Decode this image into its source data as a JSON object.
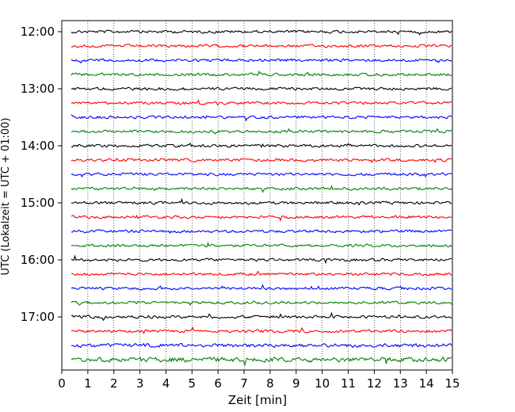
{
  "chart_data": {
    "type": "line",
    "title": "",
    "xlabel": "Zeit  [min]",
    "ylabel": "UTC (Lokalzeit = UTC + 01:00)",
    "xlim": [
      0,
      15
    ],
    "x_ticks": [
      "0",
      "1",
      "2",
      "3",
      "4",
      "5",
      "6",
      "7",
      "8",
      "9",
      "10",
      "11",
      "12",
      "13",
      "14",
      "15"
    ],
    "y_ticks": [
      "12:00",
      "13:00",
      "14:00",
      "15:00",
      "16:00",
      "17:00"
    ],
    "y_tick_row_indices": [
      0,
      4,
      8,
      12,
      16,
      20
    ],
    "grid": "vertical dotted at each minute",
    "trace_interval_minutes": 15,
    "traces": [
      {
        "start": "12:00",
        "color": "#000000"
      },
      {
        "start": "12:15",
        "color": "#ff0000"
      },
      {
        "start": "12:30",
        "color": "#0000ff"
      },
      {
        "start": "12:45",
        "color": "#008000"
      },
      {
        "start": "13:00",
        "color": "#000000"
      },
      {
        "start": "13:15",
        "color": "#ff0000"
      },
      {
        "start": "13:30",
        "color": "#0000ff"
      },
      {
        "start": "13:45",
        "color": "#008000"
      },
      {
        "start": "14:00",
        "color": "#000000"
      },
      {
        "start": "14:15",
        "color": "#ff0000"
      },
      {
        "start": "14:30",
        "color": "#0000ff"
      },
      {
        "start": "14:45",
        "color": "#008000"
      },
      {
        "start": "15:00",
        "color": "#000000"
      },
      {
        "start": "15:15",
        "color": "#ff0000"
      },
      {
        "start": "15:30",
        "color": "#0000ff"
      },
      {
        "start": "15:45",
        "color": "#008000"
      },
      {
        "start": "16:00",
        "color": "#000000"
      },
      {
        "start": "16:15",
        "color": "#ff0000"
      },
      {
        "start": "16:30",
        "color": "#0000ff"
      },
      {
        "start": "16:45",
        "color": "#008000"
      },
      {
        "start": "17:00",
        "color": "#000000"
      },
      {
        "start": "17:15",
        "color": "#ff0000"
      },
      {
        "start": "17:30",
        "color": "#0000ff"
      },
      {
        "start": "17:45",
        "color": "#008000"
      }
    ]
  }
}
